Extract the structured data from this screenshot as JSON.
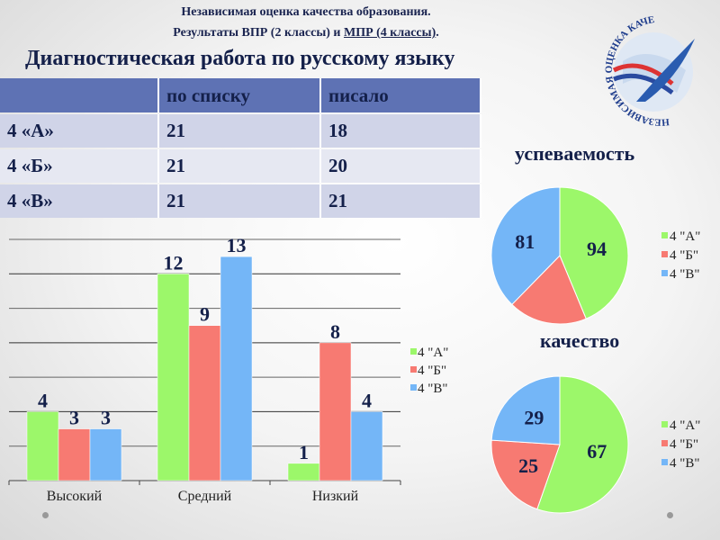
{
  "header": {
    "line1": "Независимая оценка качества образования.",
    "line2_prefix": "Результаты ВПР (2 классы) и ",
    "line2_underlined": "МПР (4 классы)",
    "line2_suffix": ".",
    "title": "Диагностическая работа по русскому языку"
  },
  "logo": {
    "text": "НЕЗАВИСИМАЯ ОЦЕНКА КАЧЕСТВА ОБРАЗОВАНИЯ"
  },
  "table": {
    "columns": [
      "",
      "по списку",
      "писало"
    ],
    "rows": [
      [
        "4 «А»",
        "21",
        "18"
      ],
      [
        "4 «Б»",
        "21",
        "20"
      ],
      [
        "4 «В»",
        "21",
        "21"
      ]
    ]
  },
  "colors": {
    "green": "#9cf76a",
    "red": "#f77a72",
    "blue": "#74b6f7"
  },
  "chart_data": [
    {
      "type": "bar",
      "categories": [
        "Высокий",
        "Средний",
        "Низкий"
      ],
      "series": [
        {
          "name": "4 \"А\"",
          "values": [
            4,
            12,
            1
          ]
        },
        {
          "name": "4 \"Б\"",
          "values": [
            3,
            9,
            8
          ]
        },
        {
          "name": "4 \"В\"",
          "values": [
            3,
            13,
            4
          ]
        }
      ],
      "ylim": [
        0,
        14
      ],
      "grid": true,
      "legend": "right"
    },
    {
      "type": "pie",
      "title": "успеваемость",
      "labels": [
        "4 \"А\"",
        "4 \"Б\"",
        "4 \"В\""
      ],
      "values": [
        94,
        40,
        81
      ],
      "legend": "right"
    },
    {
      "type": "pie",
      "title": "качество",
      "labels": [
        "4 \"А\"",
        "4 \"Б\"",
        "4 \"В\""
      ],
      "values": [
        67,
        25,
        29
      ],
      "legend": "right"
    }
  ]
}
